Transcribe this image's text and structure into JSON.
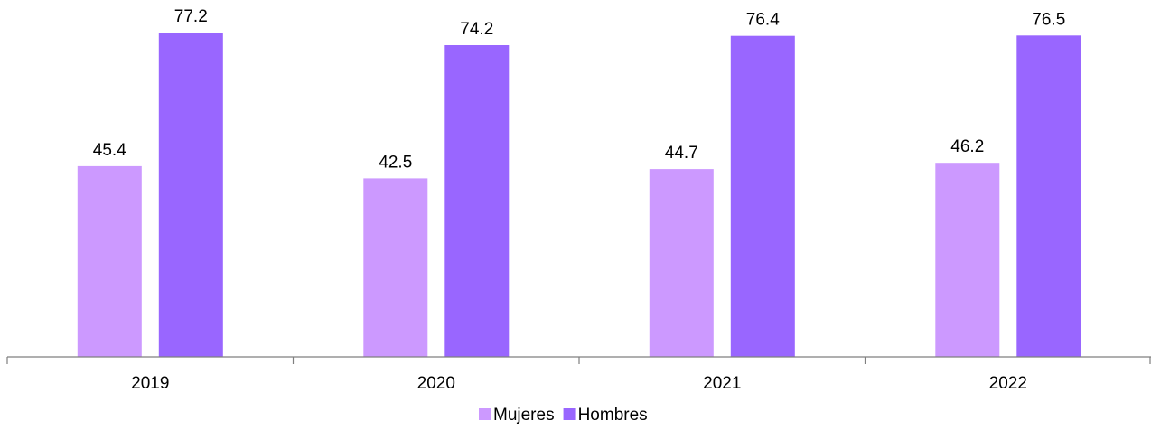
{
  "chart_data": {
    "type": "bar",
    "categories": [
      "2019",
      "2020",
      "2021",
      "2022"
    ],
    "series": [
      {
        "name": "Mujeres",
        "values": [
          45.4,
          42.5,
          44.7,
          46.2
        ],
        "color": "#cc99ff"
      },
      {
        "name": "Hombres",
        "values": [
          77.2,
          74.2,
          76.4,
          76.5
        ],
        "color": "#9966ff"
      }
    ],
    "title": "",
    "xlabel": "",
    "ylabel": "",
    "ylim": [
      0,
      77.2
    ],
    "grid": false,
    "legend_position": "bottom"
  }
}
